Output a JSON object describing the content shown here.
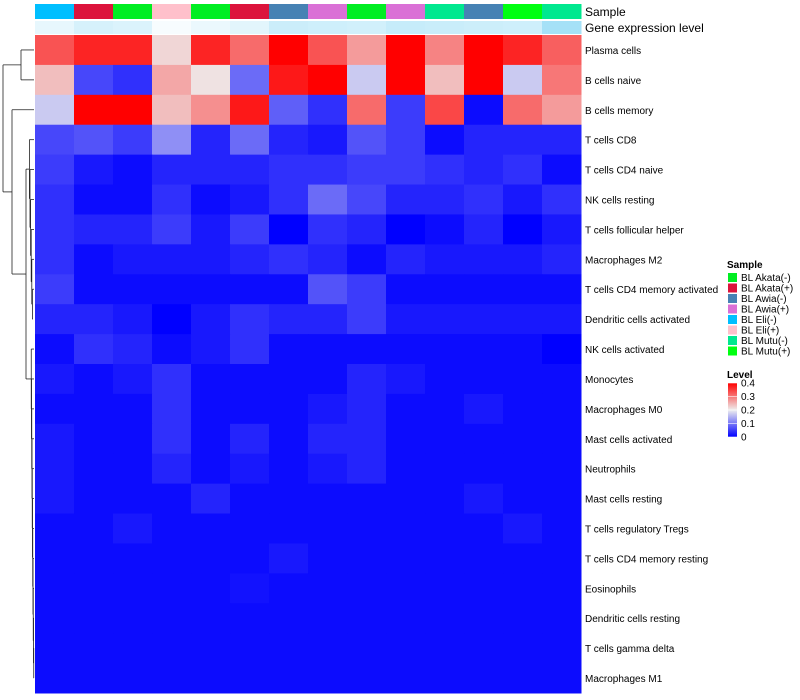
{
  "chart_data": {
    "type": "heatmap",
    "annotation_labels": [
      "Sample",
      "Gene expression level"
    ],
    "rows": [
      "Plasma cells",
      "B cells naive",
      "B cells memory",
      "T cells CD8",
      "T cells CD4 naive",
      "NK cells resting",
      "T cells follicular helper",
      "Macrophages M2",
      "T cells CD4 memory activated",
      "Dendritic cells activated",
      "NK cells activated",
      "Monocytes",
      "Macrophages M0",
      "Mast cells activated",
      "Neutrophils",
      "Mast cells resting",
      "T cells regulatory  Tregs",
      "T cells CD4 memory resting",
      "Eosinophils",
      "Dendritic cells resting",
      "T cells gamma delta",
      "Macrophages M1"
    ],
    "columns": [
      {
        "sample": "BL Eli(-)",
        "expression": 0.15
      },
      {
        "sample": "BL Akata(+)",
        "expression": 0.25
      },
      {
        "sample": "BL Akata(-)",
        "expression": 0.22
      },
      {
        "sample": "BL Eli(+)",
        "expression": 0.05
      },
      {
        "sample": "BL Akata(-)",
        "expression": 0.12
      },
      {
        "sample": "BL Akata(+)",
        "expression": 0.18
      },
      {
        "sample": "BL Awia(-)",
        "expression": 0.32
      },
      {
        "sample": "BL Awia(+)",
        "expression": 0.3
      },
      {
        "sample": "BL Akata(-)",
        "expression": 0.28
      },
      {
        "sample": "BL Awia(+)",
        "expression": 0.35
      },
      {
        "sample": "BL Mutu(-)",
        "expression": 0.33
      },
      {
        "sample": "BL Awia(-)",
        "expression": 0.31
      },
      {
        "sample": "BL Mutu(+)",
        "expression": 0.3
      },
      {
        "sample": "BL Mutu(-)",
        "expression": 0.55
      }
    ],
    "values": [
      [
        0.33,
        0.37,
        0.37,
        0.22,
        0.37,
        0.31,
        0.4,
        0.33,
        0.27,
        0.4,
        0.29,
        0.42,
        0.37,
        0.32
      ],
      [
        0.24,
        0.06,
        0.04,
        0.26,
        0.21,
        0.09,
        0.38,
        0.45,
        0.17,
        0.46,
        0.24,
        0.46,
        0.17,
        0.3
      ],
      [
        0.17,
        0.45,
        0.45,
        0.24,
        0.28,
        0.38,
        0.08,
        0.04,
        0.31,
        0.05,
        0.34,
        0.01,
        0.31,
        0.27
      ],
      [
        0.06,
        0.07,
        0.05,
        0.12,
        0.03,
        0.09,
        0.03,
        0.02,
        0.07,
        0.05,
        0.01,
        0.03,
        0.03,
        0.03
      ],
      [
        0.05,
        0.02,
        0.01,
        0.03,
        0.03,
        0.03,
        0.04,
        0.04,
        0.05,
        0.05,
        0.04,
        0.03,
        0.04,
        0.01
      ],
      [
        0.04,
        0.01,
        0.01,
        0.04,
        0.01,
        0.02,
        0.04,
        0.09,
        0.06,
        0.03,
        0.03,
        0.04,
        0.02,
        0.04
      ],
      [
        0.04,
        0.03,
        0.03,
        0.05,
        0.02,
        0.05,
        0.0,
        0.04,
        0.03,
        0.0,
        0.01,
        0.03,
        0.0,
        0.02
      ],
      [
        0.04,
        0.01,
        0.02,
        0.02,
        0.02,
        0.03,
        0.04,
        0.03,
        0.01,
        0.03,
        0.02,
        0.02,
        0.02,
        0.03
      ],
      [
        0.05,
        0.01,
        0.01,
        0.01,
        0.01,
        0.01,
        0.01,
        0.07,
        0.05,
        0.01,
        0.01,
        0.01,
        0.01,
        0.01
      ],
      [
        0.03,
        0.03,
        0.02,
        0.0,
        0.02,
        0.04,
        0.03,
        0.03,
        0.05,
        0.02,
        0.02,
        0.02,
        0.02,
        0.02
      ],
      [
        0.01,
        0.04,
        0.03,
        0.01,
        0.02,
        0.04,
        0.01,
        0.01,
        0.01,
        0.01,
        0.01,
        0.01,
        0.01,
        0.0
      ],
      [
        0.02,
        0.01,
        0.02,
        0.04,
        0.01,
        0.01,
        0.01,
        0.01,
        0.03,
        0.02,
        0.01,
        0.01,
        0.01,
        0.01
      ],
      [
        0.01,
        0.01,
        0.01,
        0.04,
        0.01,
        0.01,
        0.01,
        0.02,
        0.03,
        0.01,
        0.01,
        0.02,
        0.01,
        0.01
      ],
      [
        0.02,
        0.01,
        0.01,
        0.04,
        0.01,
        0.03,
        0.01,
        0.03,
        0.03,
        0.01,
        0.01,
        0.01,
        0.01,
        0.01
      ],
      [
        0.02,
        0.01,
        0.01,
        0.03,
        0.01,
        0.02,
        0.01,
        0.02,
        0.03,
        0.01,
        0.01,
        0.01,
        0.01,
        0.01
      ],
      [
        0.02,
        0.01,
        0.01,
        0.01,
        0.03,
        0.01,
        0.01,
        0.01,
        0.01,
        0.01,
        0.01,
        0.02,
        0.01,
        0.01
      ],
      [
        0.01,
        0.01,
        0.02,
        0.01,
        0.01,
        0.01,
        0.01,
        0.01,
        0.01,
        0.01,
        0.01,
        0.01,
        0.02,
        0.01
      ],
      [
        0.01,
        0.01,
        0.01,
        0.01,
        0.01,
        0.01,
        0.02,
        0.01,
        0.01,
        0.01,
        0.01,
        0.01,
        0.01,
        0.01
      ],
      [
        0.01,
        0.01,
        0.01,
        0.01,
        0.01,
        0.015,
        0.01,
        0.01,
        0.01,
        0.01,
        0.01,
        0.01,
        0.01,
        0.01
      ],
      [
        0.01,
        0.01,
        0.01,
        0.01,
        0.01,
        0.01,
        0.01,
        0.01,
        0.01,
        0.01,
        0.01,
        0.01,
        0.01,
        0.01
      ],
      [
        0.01,
        0.01,
        0.01,
        0.01,
        0.01,
        0.01,
        0.01,
        0.01,
        0.01,
        0.01,
        0.01,
        0.01,
        0.01,
        0.01
      ],
      [
        0.01,
        0.01,
        0.01,
        0.01,
        0.01,
        0.01,
        0.01,
        0.01,
        0.01,
        0.01,
        0.01,
        0.01,
        0.01,
        0.01
      ]
    ],
    "value_range": [
      0,
      0.4
    ],
    "palette": {
      "low": "#0000ff",
      "mid": "#eeeeee",
      "high": "#ff0000"
    },
    "sample_legend": {
      "title": "Sample",
      "entries": [
        {
          "label": "BL Akata(-)",
          "color": "#00ee22"
        },
        {
          "label": "BL Akata(+)",
          "color": "#dc143c"
        },
        {
          "label": "BL Awia(-)",
          "color": "#4682b4"
        },
        {
          "label": "BL Awia(+)",
          "color": "#da70d6"
        },
        {
          "label": "BL Eli(-)",
          "color": "#00bfff"
        },
        {
          "label": "BL Eli(+)",
          "color": "#ffc0cb"
        },
        {
          "label": "BL Mutu(-)",
          "color": "#00e88f"
        },
        {
          "label": "BL Mutu(+)",
          "color": "#00ff11"
        }
      ]
    },
    "level_legend": {
      "title": "Level",
      "ticks": [
        "0.4",
        "0.3",
        "0.2",
        "0.1",
        "0"
      ]
    },
    "expression_palette": {
      "low": "#ffffff",
      "high": "#5cc8f0"
    }
  }
}
